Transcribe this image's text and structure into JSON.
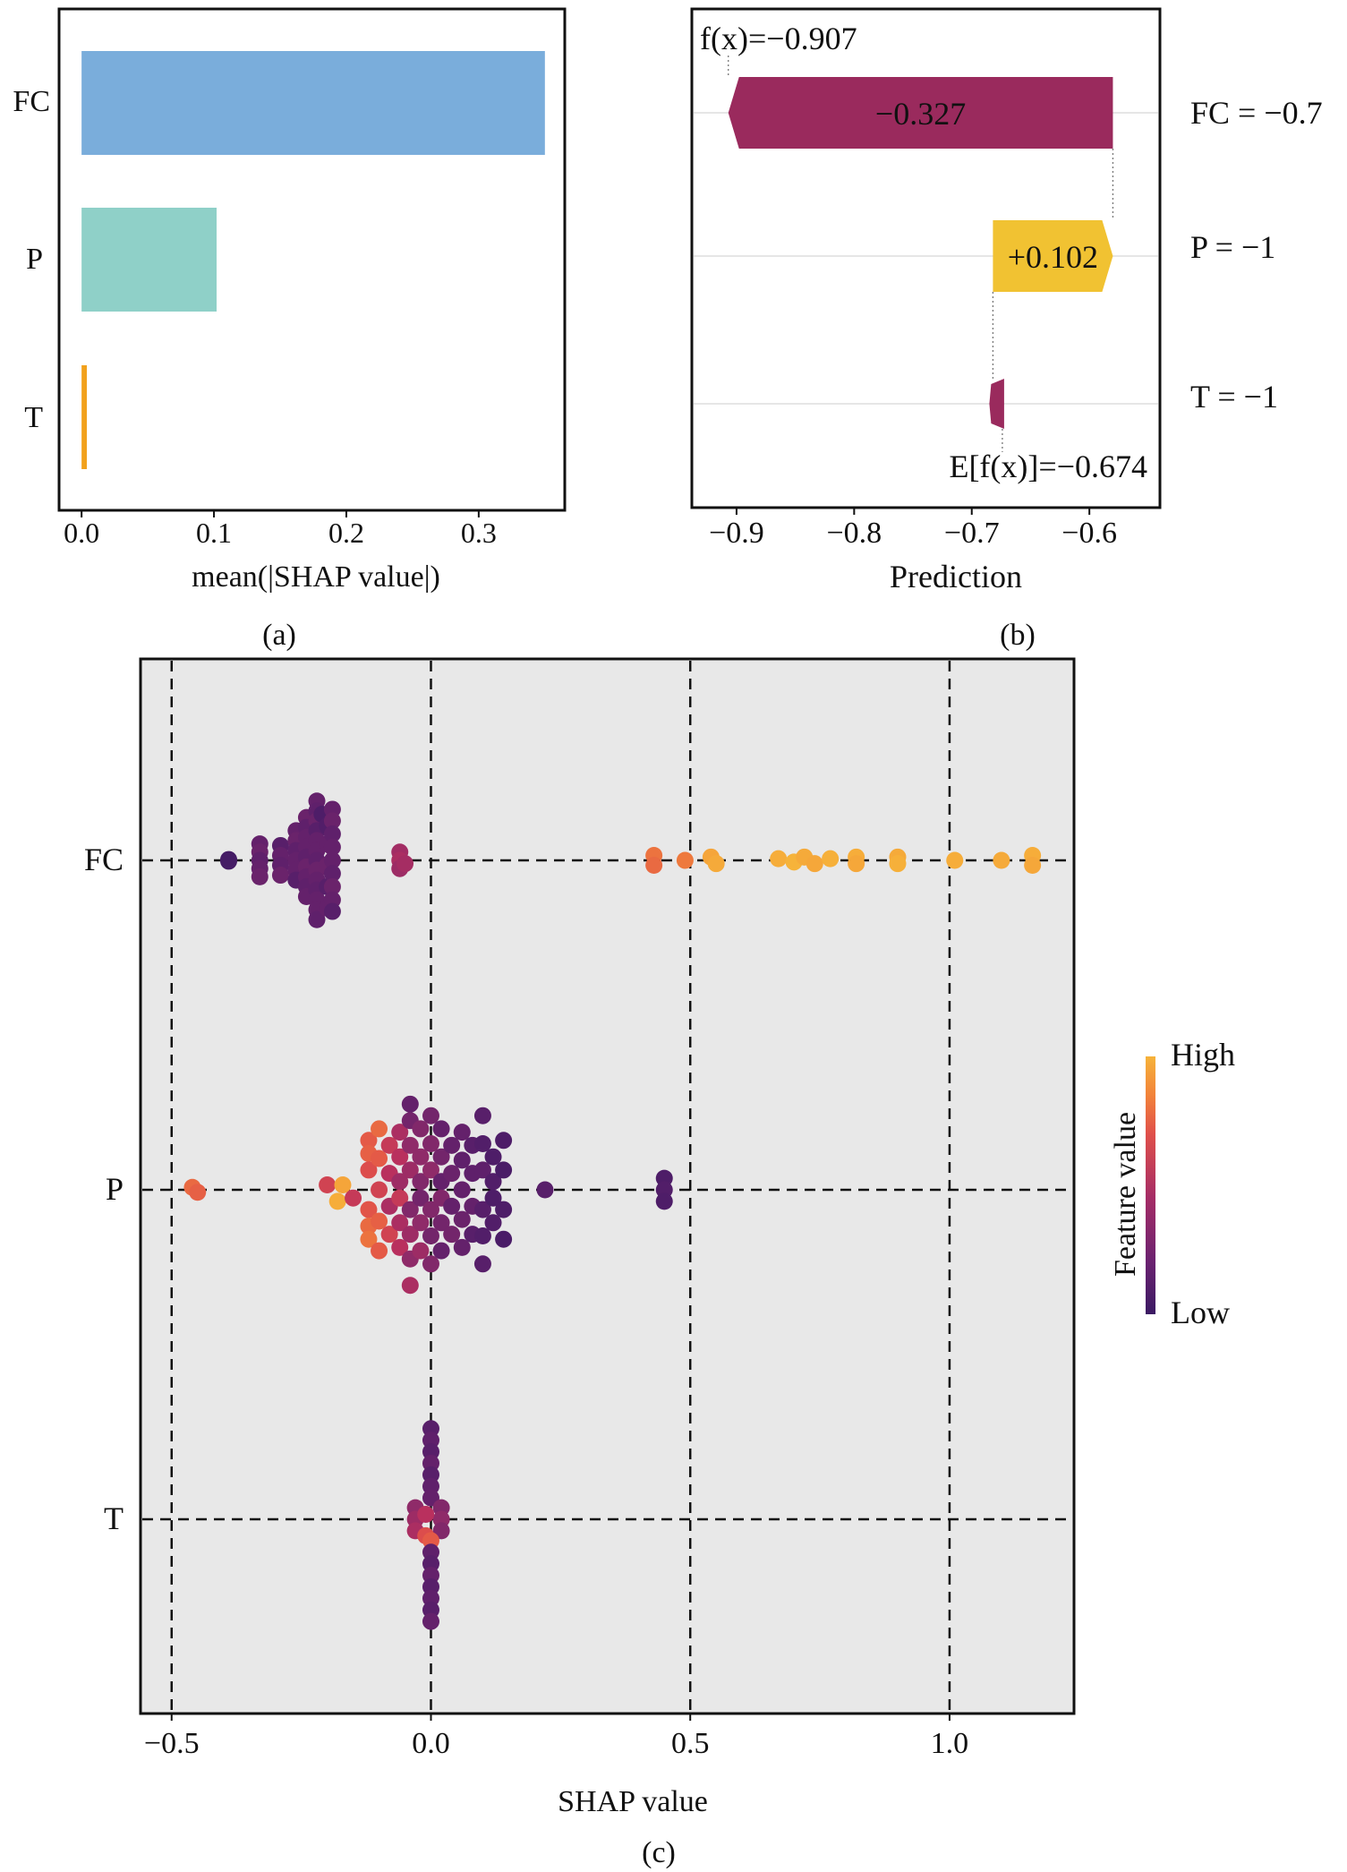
{
  "chart_data": [
    {
      "panel": "(a)",
      "type": "bar",
      "orientation": "horizontal",
      "categories": [
        "FC",
        "P",
        "T"
      ],
      "values": [
        0.35,
        0.102,
        0.004
      ],
      "colors": [
        "#7aaddb",
        "#8fd0c8",
        "#f2a11c"
      ],
      "xlabel": "mean(|SHAP value|)",
      "xticks": [
        "0.0",
        "0.1",
        "0.2",
        "0.3"
      ],
      "xlim": [
        -0.017,
        0.365
      ]
    },
    {
      "panel": "(b)",
      "type": "waterfall",
      "features": [
        {
          "label": "FC = −0.7",
          "contribution_label": "−0.327",
          "start": -0.58,
          "end": -0.907,
          "color": "#9a2a5d"
        },
        {
          "label": "P = −1",
          "contribution_label": "+0.102",
          "start": -0.682,
          "end": -0.58,
          "color": "#f1c232"
        },
        {
          "label": "T = −1",
          "contribution_label": "",
          "start": -0.674,
          "end": -0.682,
          "color": "#9a2a5d"
        }
      ],
      "fx_label": "f(x)=−0.907",
      "efx_label": "E[f(x)]=−0.674",
      "xlabel": "Prediction",
      "xticks": [
        "−0.9",
        "−0.8",
        "−0.7",
        "−0.6"
      ],
      "xlim": [
        -0.938,
        -0.54
      ]
    },
    {
      "panel": "(c)",
      "type": "scatter",
      "subtype": "beeswarm",
      "features": [
        "FC",
        "P",
        "T"
      ],
      "xlabel": "SHAP value",
      "xticks": [
        "−0.5",
        "0.0",
        "0.5",
        "1.0"
      ],
      "xlim": [
        -0.56,
        1.24
      ],
      "colorbar": {
        "title": "Feature value",
        "high": "High",
        "low": "Low"
      },
      "colormap": [
        "#3b1a63",
        "#5b1f6b",
        "#8a2a6a",
        "#b9305e",
        "#e0504a",
        "#f2833a",
        "#f6b33a"
      ],
      "points": {
        "FC": [
          {
            "x": -0.39,
            "dy": -0.005,
            "c": 0.05
          },
          {
            "x": -0.39,
            "dy": 0.005,
            "c": 0.05
          },
          {
            "x": -0.33,
            "dy": -0.1,
            "c": 0.2
          },
          {
            "x": -0.33,
            "dy": -0.05,
            "c": 0.22
          },
          {
            "x": -0.33,
            "dy": 0.0,
            "c": 0.18
          },
          {
            "x": -0.33,
            "dy": 0.05,
            "c": 0.2
          },
          {
            "x": -0.33,
            "dy": 0.1,
            "c": 0.22
          },
          {
            "x": -0.29,
            "dy": -0.09,
            "c": 0.15
          },
          {
            "x": -0.29,
            "dy": -0.03,
            "c": 0.2
          },
          {
            "x": -0.29,
            "dy": 0.03,
            "c": 0.18
          },
          {
            "x": -0.29,
            "dy": 0.09,
            "c": 0.22
          },
          {
            "x": -0.26,
            "dy": -0.18,
            "c": 0.2
          },
          {
            "x": -0.26,
            "dy": -0.12,
            "c": 0.22
          },
          {
            "x": -0.26,
            "dy": -0.06,
            "c": 0.18
          },
          {
            "x": -0.26,
            "dy": 0.0,
            "c": 0.2
          },
          {
            "x": -0.26,
            "dy": 0.06,
            "c": 0.2
          },
          {
            "x": -0.26,
            "dy": 0.12,
            "c": 0.15
          },
          {
            "x": -0.24,
            "dy": -0.26,
            "c": 0.22
          },
          {
            "x": -0.24,
            "dy": -0.2,
            "c": 0.18
          },
          {
            "x": -0.24,
            "dy": -0.14,
            "c": 0.2
          },
          {
            "x": -0.24,
            "dy": -0.08,
            "c": 0.2
          },
          {
            "x": -0.24,
            "dy": -0.02,
            "c": 0.18
          },
          {
            "x": -0.24,
            "dy": 0.04,
            "c": 0.22
          },
          {
            "x": -0.24,
            "dy": 0.1,
            "c": 0.2
          },
          {
            "x": -0.24,
            "dy": 0.16,
            "c": 0.18
          },
          {
            "x": -0.24,
            "dy": 0.22,
            "c": 0.2
          },
          {
            "x": -0.22,
            "dy": -0.36,
            "c": 0.2
          },
          {
            "x": -0.22,
            "dy": -0.3,
            "c": 0.18
          },
          {
            "x": -0.22,
            "dy": -0.24,
            "c": 0.22
          },
          {
            "x": -0.22,
            "dy": -0.18,
            "c": 0.15
          },
          {
            "x": -0.22,
            "dy": -0.12,
            "c": 0.2
          },
          {
            "x": -0.22,
            "dy": -0.06,
            "c": 0.2
          },
          {
            "x": -0.22,
            "dy": 0.0,
            "c": 0.18
          },
          {
            "x": -0.22,
            "dy": 0.06,
            "c": 0.22
          },
          {
            "x": -0.22,
            "dy": 0.12,
            "c": 0.2
          },
          {
            "x": -0.22,
            "dy": 0.18,
            "c": 0.18
          },
          {
            "x": -0.22,
            "dy": 0.24,
            "c": 0.2
          },
          {
            "x": -0.22,
            "dy": 0.3,
            "c": 0.2
          },
          {
            "x": -0.22,
            "dy": 0.36,
            "c": 0.18
          },
          {
            "x": -0.21,
            "dy": -0.28,
            "c": 0.1
          },
          {
            "x": -0.2,
            "dy": -0.21,
            "c": 0.12
          },
          {
            "x": -0.2,
            "dy": -0.1,
            "c": 0.2
          },
          {
            "x": -0.2,
            "dy": 0.03,
            "c": 0.22
          },
          {
            "x": -0.2,
            "dy": 0.16,
            "c": 0.15
          },
          {
            "x": -0.2,
            "dy": 0.29,
            "c": 0.2
          },
          {
            "x": -0.19,
            "dy": -0.31,
            "c": 0.2
          },
          {
            "x": -0.19,
            "dy": -0.24,
            "c": 0.22
          },
          {
            "x": -0.19,
            "dy": -0.16,
            "c": 0.18
          },
          {
            "x": -0.19,
            "dy": -0.08,
            "c": 0.2
          },
          {
            "x": -0.19,
            "dy": 0.0,
            "c": 0.2
          },
          {
            "x": -0.19,
            "dy": 0.08,
            "c": 0.18
          },
          {
            "x": -0.19,
            "dy": 0.16,
            "c": 0.22
          },
          {
            "x": -0.19,
            "dy": 0.24,
            "c": 0.2
          },
          {
            "x": -0.19,
            "dy": 0.31,
            "c": 0.15
          },
          {
            "x": -0.06,
            "dy": -0.05,
            "c": 0.42
          },
          {
            "x": -0.06,
            "dy": 0.0,
            "c": 0.45
          },
          {
            "x": -0.06,
            "dy": 0.05,
            "c": 0.4
          },
          {
            "x": -0.05,
            "dy": 0.02,
            "c": 0.43
          },
          {
            "x": 0.43,
            "dy": -0.03,
            "c": 0.78
          },
          {
            "x": 0.43,
            "dy": 0.03,
            "c": 0.75
          },
          {
            "x": 0.49,
            "dy": 0.0,
            "c": 0.8
          },
          {
            "x": 0.54,
            "dy": -0.02,
            "c": 0.95
          },
          {
            "x": 0.55,
            "dy": 0.02,
            "c": 0.97
          },
          {
            "x": 0.67,
            "dy": -0.01,
            "c": 0.98
          },
          {
            "x": 0.7,
            "dy": 0.01,
            "c": 1.0
          },
          {
            "x": 0.72,
            "dy": -0.02,
            "c": 0.97
          },
          {
            "x": 0.74,
            "dy": 0.02,
            "c": 0.96
          },
          {
            "x": 0.77,
            "dy": -0.01,
            "c": 0.99
          },
          {
            "x": 0.82,
            "dy": -0.02,
            "c": 0.98
          },
          {
            "x": 0.82,
            "dy": 0.02,
            "c": 0.96
          },
          {
            "x": 0.9,
            "dy": -0.02,
            "c": 0.97
          },
          {
            "x": 0.9,
            "dy": 0.02,
            "c": 0.99
          },
          {
            "x": 1.01,
            "dy": 0.0,
            "c": 0.98
          },
          {
            "x": 1.1,
            "dy": 0.0,
            "c": 0.97
          },
          {
            "x": 1.16,
            "dy": -0.03,
            "c": 0.98
          },
          {
            "x": 1.16,
            "dy": 0.03,
            "c": 0.96
          }
        ],
        "P": [
          {
            "x": -0.46,
            "dy": -0.015,
            "c": 0.75
          },
          {
            "x": -0.45,
            "dy": 0.015,
            "c": 0.72
          },
          {
            "x": -0.2,
            "dy": -0.03,
            "c": 0.6
          },
          {
            "x": -0.17,
            "dy": -0.03,
            "c": 0.95
          },
          {
            "x": -0.18,
            "dy": 0.07,
            "c": 0.98
          },
          {
            "x": -0.15,
            "dy": 0.05,
            "c": 0.55
          },
          {
            "x": -0.12,
            "dy": -0.3,
            "c": 0.7
          },
          {
            "x": -0.12,
            "dy": -0.22,
            "c": 0.72
          },
          {
            "x": -0.12,
            "dy": -0.12,
            "c": 0.65
          },
          {
            "x": -0.12,
            "dy": 0.12,
            "c": 0.68
          },
          {
            "x": -0.12,
            "dy": 0.22,
            "c": 0.75
          },
          {
            "x": -0.12,
            "dy": 0.3,
            "c": 0.78
          },
          {
            "x": -0.1,
            "dy": -0.37,
            "c": 0.75
          },
          {
            "x": -0.1,
            "dy": -0.19,
            "c": 0.7
          },
          {
            "x": -0.1,
            "dy": 0.0,
            "c": 0.6
          },
          {
            "x": -0.1,
            "dy": 0.19,
            "c": 0.72
          },
          {
            "x": -0.1,
            "dy": 0.37,
            "c": 0.7
          },
          {
            "x": -0.08,
            "dy": -0.27,
            "c": 0.55
          },
          {
            "x": -0.08,
            "dy": -0.1,
            "c": 0.5
          },
          {
            "x": -0.08,
            "dy": 0.1,
            "c": 0.45
          },
          {
            "x": -0.08,
            "dy": 0.27,
            "c": 0.6
          },
          {
            "x": -0.06,
            "dy": -0.35,
            "c": 0.45
          },
          {
            "x": -0.06,
            "dy": -0.2,
            "c": 0.5
          },
          {
            "x": -0.06,
            "dy": -0.05,
            "c": 0.4
          },
          {
            "x": -0.06,
            "dy": 0.05,
            "c": 0.55
          },
          {
            "x": -0.06,
            "dy": 0.2,
            "c": 0.45
          },
          {
            "x": -0.06,
            "dy": 0.35,
            "c": 0.5
          },
          {
            "x": -0.04,
            "dy": -0.52,
            "c": 0.2
          },
          {
            "x": -0.04,
            "dy": -0.42,
            "c": 0.25
          },
          {
            "x": -0.04,
            "dy": -0.27,
            "c": 0.35
          },
          {
            "x": -0.04,
            "dy": -0.12,
            "c": 0.4
          },
          {
            "x": -0.04,
            "dy": 0.12,
            "c": 0.3
          },
          {
            "x": -0.04,
            "dy": 0.27,
            "c": 0.4
          },
          {
            "x": -0.04,
            "dy": 0.42,
            "c": 0.35
          },
          {
            "x": -0.04,
            "dy": 0.58,
            "c": 0.45
          },
          {
            "x": -0.02,
            "dy": -0.37,
            "c": 0.3
          },
          {
            "x": -0.02,
            "dy": -0.2,
            "c": 0.35
          },
          {
            "x": -0.02,
            "dy": -0.05,
            "c": 0.3
          },
          {
            "x": -0.02,
            "dy": 0.05,
            "c": 0.25
          },
          {
            "x": -0.02,
            "dy": 0.2,
            "c": 0.35
          },
          {
            "x": -0.02,
            "dy": 0.37,
            "c": 0.4
          },
          {
            "x": 0.0,
            "dy": -0.45,
            "c": 0.25
          },
          {
            "x": 0.0,
            "dy": -0.28,
            "c": 0.3
          },
          {
            "x": 0.0,
            "dy": -0.12,
            "c": 0.35
          },
          {
            "x": 0.0,
            "dy": 0.12,
            "c": 0.3
          },
          {
            "x": 0.0,
            "dy": 0.28,
            "c": 0.25
          },
          {
            "x": 0.0,
            "dy": 0.45,
            "c": 0.3
          },
          {
            "x": 0.02,
            "dy": -0.37,
            "c": 0.2
          },
          {
            "x": 0.02,
            "dy": -0.2,
            "c": 0.25
          },
          {
            "x": 0.02,
            "dy": -0.05,
            "c": 0.2
          },
          {
            "x": 0.02,
            "dy": 0.05,
            "c": 0.3
          },
          {
            "x": 0.02,
            "dy": 0.2,
            "c": 0.25
          },
          {
            "x": 0.02,
            "dy": 0.37,
            "c": 0.2
          },
          {
            "x": 0.04,
            "dy": -0.27,
            "c": 0.2
          },
          {
            "x": 0.04,
            "dy": -0.1,
            "c": 0.22
          },
          {
            "x": 0.04,
            "dy": 0.1,
            "c": 0.2
          },
          {
            "x": 0.04,
            "dy": 0.27,
            "c": 0.25
          },
          {
            "x": 0.06,
            "dy": -0.35,
            "c": 0.2
          },
          {
            "x": 0.06,
            "dy": -0.18,
            "c": 0.18
          },
          {
            "x": 0.06,
            "dy": 0.0,
            "c": 0.2
          },
          {
            "x": 0.06,
            "dy": 0.18,
            "c": 0.22
          },
          {
            "x": 0.06,
            "dy": 0.35,
            "c": 0.2
          },
          {
            "x": 0.08,
            "dy": -0.27,
            "c": 0.15
          },
          {
            "x": 0.08,
            "dy": -0.1,
            "c": 0.18
          },
          {
            "x": 0.08,
            "dy": 0.1,
            "c": 0.2
          },
          {
            "x": 0.08,
            "dy": 0.27,
            "c": 0.15
          },
          {
            "x": 0.1,
            "dy": -0.45,
            "c": 0.15
          },
          {
            "x": 0.1,
            "dy": -0.28,
            "c": 0.12
          },
          {
            "x": 0.1,
            "dy": -0.12,
            "c": 0.18
          },
          {
            "x": 0.1,
            "dy": 0.12,
            "c": 0.15
          },
          {
            "x": 0.1,
            "dy": 0.28,
            "c": 0.12
          },
          {
            "x": 0.1,
            "dy": 0.45,
            "c": 0.15
          },
          {
            "x": 0.12,
            "dy": -0.2,
            "c": 0.1
          },
          {
            "x": 0.12,
            "dy": -0.05,
            "c": 0.12
          },
          {
            "x": 0.12,
            "dy": 0.05,
            "c": 0.1
          },
          {
            "x": 0.12,
            "dy": 0.2,
            "c": 0.12
          },
          {
            "x": 0.14,
            "dy": -0.3,
            "c": 0.1
          },
          {
            "x": 0.14,
            "dy": -0.12,
            "c": 0.08
          },
          {
            "x": 0.14,
            "dy": 0.12,
            "c": 0.1
          },
          {
            "x": 0.14,
            "dy": 0.3,
            "c": 0.08
          },
          {
            "x": 0.22,
            "dy": 0.0,
            "c": 0.15
          },
          {
            "x": 0.45,
            "dy": -0.07,
            "c": 0.1
          },
          {
            "x": 0.45,
            "dy": 0.0,
            "c": 0.12
          },
          {
            "x": 0.45,
            "dy": 0.07,
            "c": 0.1
          }
        ],
        "T": [
          {
            "x": 0.0,
            "dy": -0.55,
            "c": 0.15
          },
          {
            "x": 0.0,
            "dy": -0.48,
            "c": 0.18
          },
          {
            "x": 0.0,
            "dy": -0.41,
            "c": 0.15
          },
          {
            "x": 0.0,
            "dy": -0.34,
            "c": 0.2
          },
          {
            "x": 0.0,
            "dy": -0.27,
            "c": 0.15
          },
          {
            "x": 0.0,
            "dy": -0.2,
            "c": 0.18
          },
          {
            "x": 0.0,
            "dy": -0.13,
            "c": 0.2
          },
          {
            "x": -0.03,
            "dy": -0.07,
            "c": 0.35
          },
          {
            "x": -0.03,
            "dy": 0.0,
            "c": 0.4
          },
          {
            "x": -0.03,
            "dy": 0.07,
            "c": 0.45
          },
          {
            "x": 0.02,
            "dy": -0.07,
            "c": 0.3
          },
          {
            "x": 0.02,
            "dy": 0.0,
            "c": 0.35
          },
          {
            "x": 0.02,
            "dy": 0.07,
            "c": 0.3
          },
          {
            "x": -0.01,
            "dy": -0.03,
            "c": 0.5
          },
          {
            "x": -0.01,
            "dy": 0.1,
            "c": 0.65
          },
          {
            "x": 0.0,
            "dy": 0.13,
            "c": 0.7
          },
          {
            "x": 0.0,
            "dy": 0.2,
            "c": 0.18
          },
          {
            "x": 0.0,
            "dy": 0.27,
            "c": 0.15
          },
          {
            "x": 0.0,
            "dy": 0.34,
            "c": 0.2
          },
          {
            "x": 0.0,
            "dy": 0.41,
            "c": 0.15
          },
          {
            "x": 0.0,
            "dy": 0.48,
            "c": 0.18
          },
          {
            "x": 0.0,
            "dy": 0.55,
            "c": 0.15
          },
          {
            "x": 0.0,
            "dy": 0.62,
            "c": 0.2
          }
        ]
      }
    }
  ],
  "captions": {
    "a": "(a)",
    "b": "(b)",
    "c": "(c)"
  }
}
